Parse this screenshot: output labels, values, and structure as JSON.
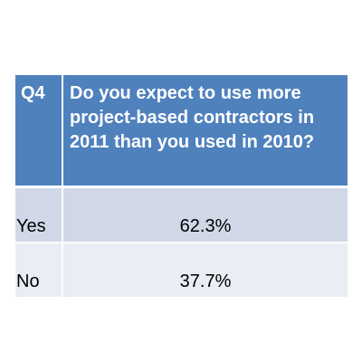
{
  "chart_data": {
    "type": "table",
    "question_number": "Q4",
    "question": "Do you expect to use more project-based contractors in 2011 than you used in 2010?",
    "rows": [
      {
        "label": "Yes",
        "value": "62.3%"
      },
      {
        "label": "No",
        "value": "37.7%"
      }
    ],
    "values": [
      62.3,
      37.7
    ],
    "categories": [
      "Yes",
      "No"
    ],
    "colors": {
      "header_bg": "#4f81bd",
      "header_text": "#ffffff",
      "row1_bg": "#d0d8e8",
      "row2_bg": "#e9edf4"
    }
  }
}
